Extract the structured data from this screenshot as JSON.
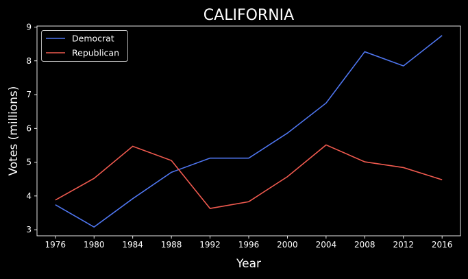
{
  "chart_data": {
    "type": "line",
    "title": "CALIFORNIA",
    "xlabel": "Year",
    "ylabel": "Votes (millions)",
    "x": [
      1976,
      1980,
      1984,
      1988,
      1992,
      1996,
      2000,
      2004,
      2008,
      2012,
      2016
    ],
    "xticks": [
      "1976",
      "1980",
      "1984",
      "1988",
      "1992",
      "1996",
      "2000",
      "2004",
      "2008",
      "2012",
      "2016"
    ],
    "yticks": [
      "3",
      "4",
      "5",
      "6",
      "7",
      "8",
      "9"
    ],
    "xlim": [
      1974.1,
      2017.9
    ],
    "ylim": [
      2.82,
      9.03
    ],
    "grid": false,
    "legend_position": "top-left",
    "series": [
      {
        "name": "Democrat",
        "color": "#4f76f0",
        "values": [
          3.74,
          3.08,
          3.92,
          4.7,
          5.12,
          5.12,
          5.86,
          6.75,
          8.27,
          7.85,
          8.75
        ]
      },
      {
        "name": "Republican",
        "color": "#f05a4f",
        "values": [
          3.88,
          4.52,
          5.47,
          5.05,
          3.63,
          3.83,
          4.57,
          5.51,
          5.01,
          4.84,
          4.48
        ]
      }
    ]
  }
}
